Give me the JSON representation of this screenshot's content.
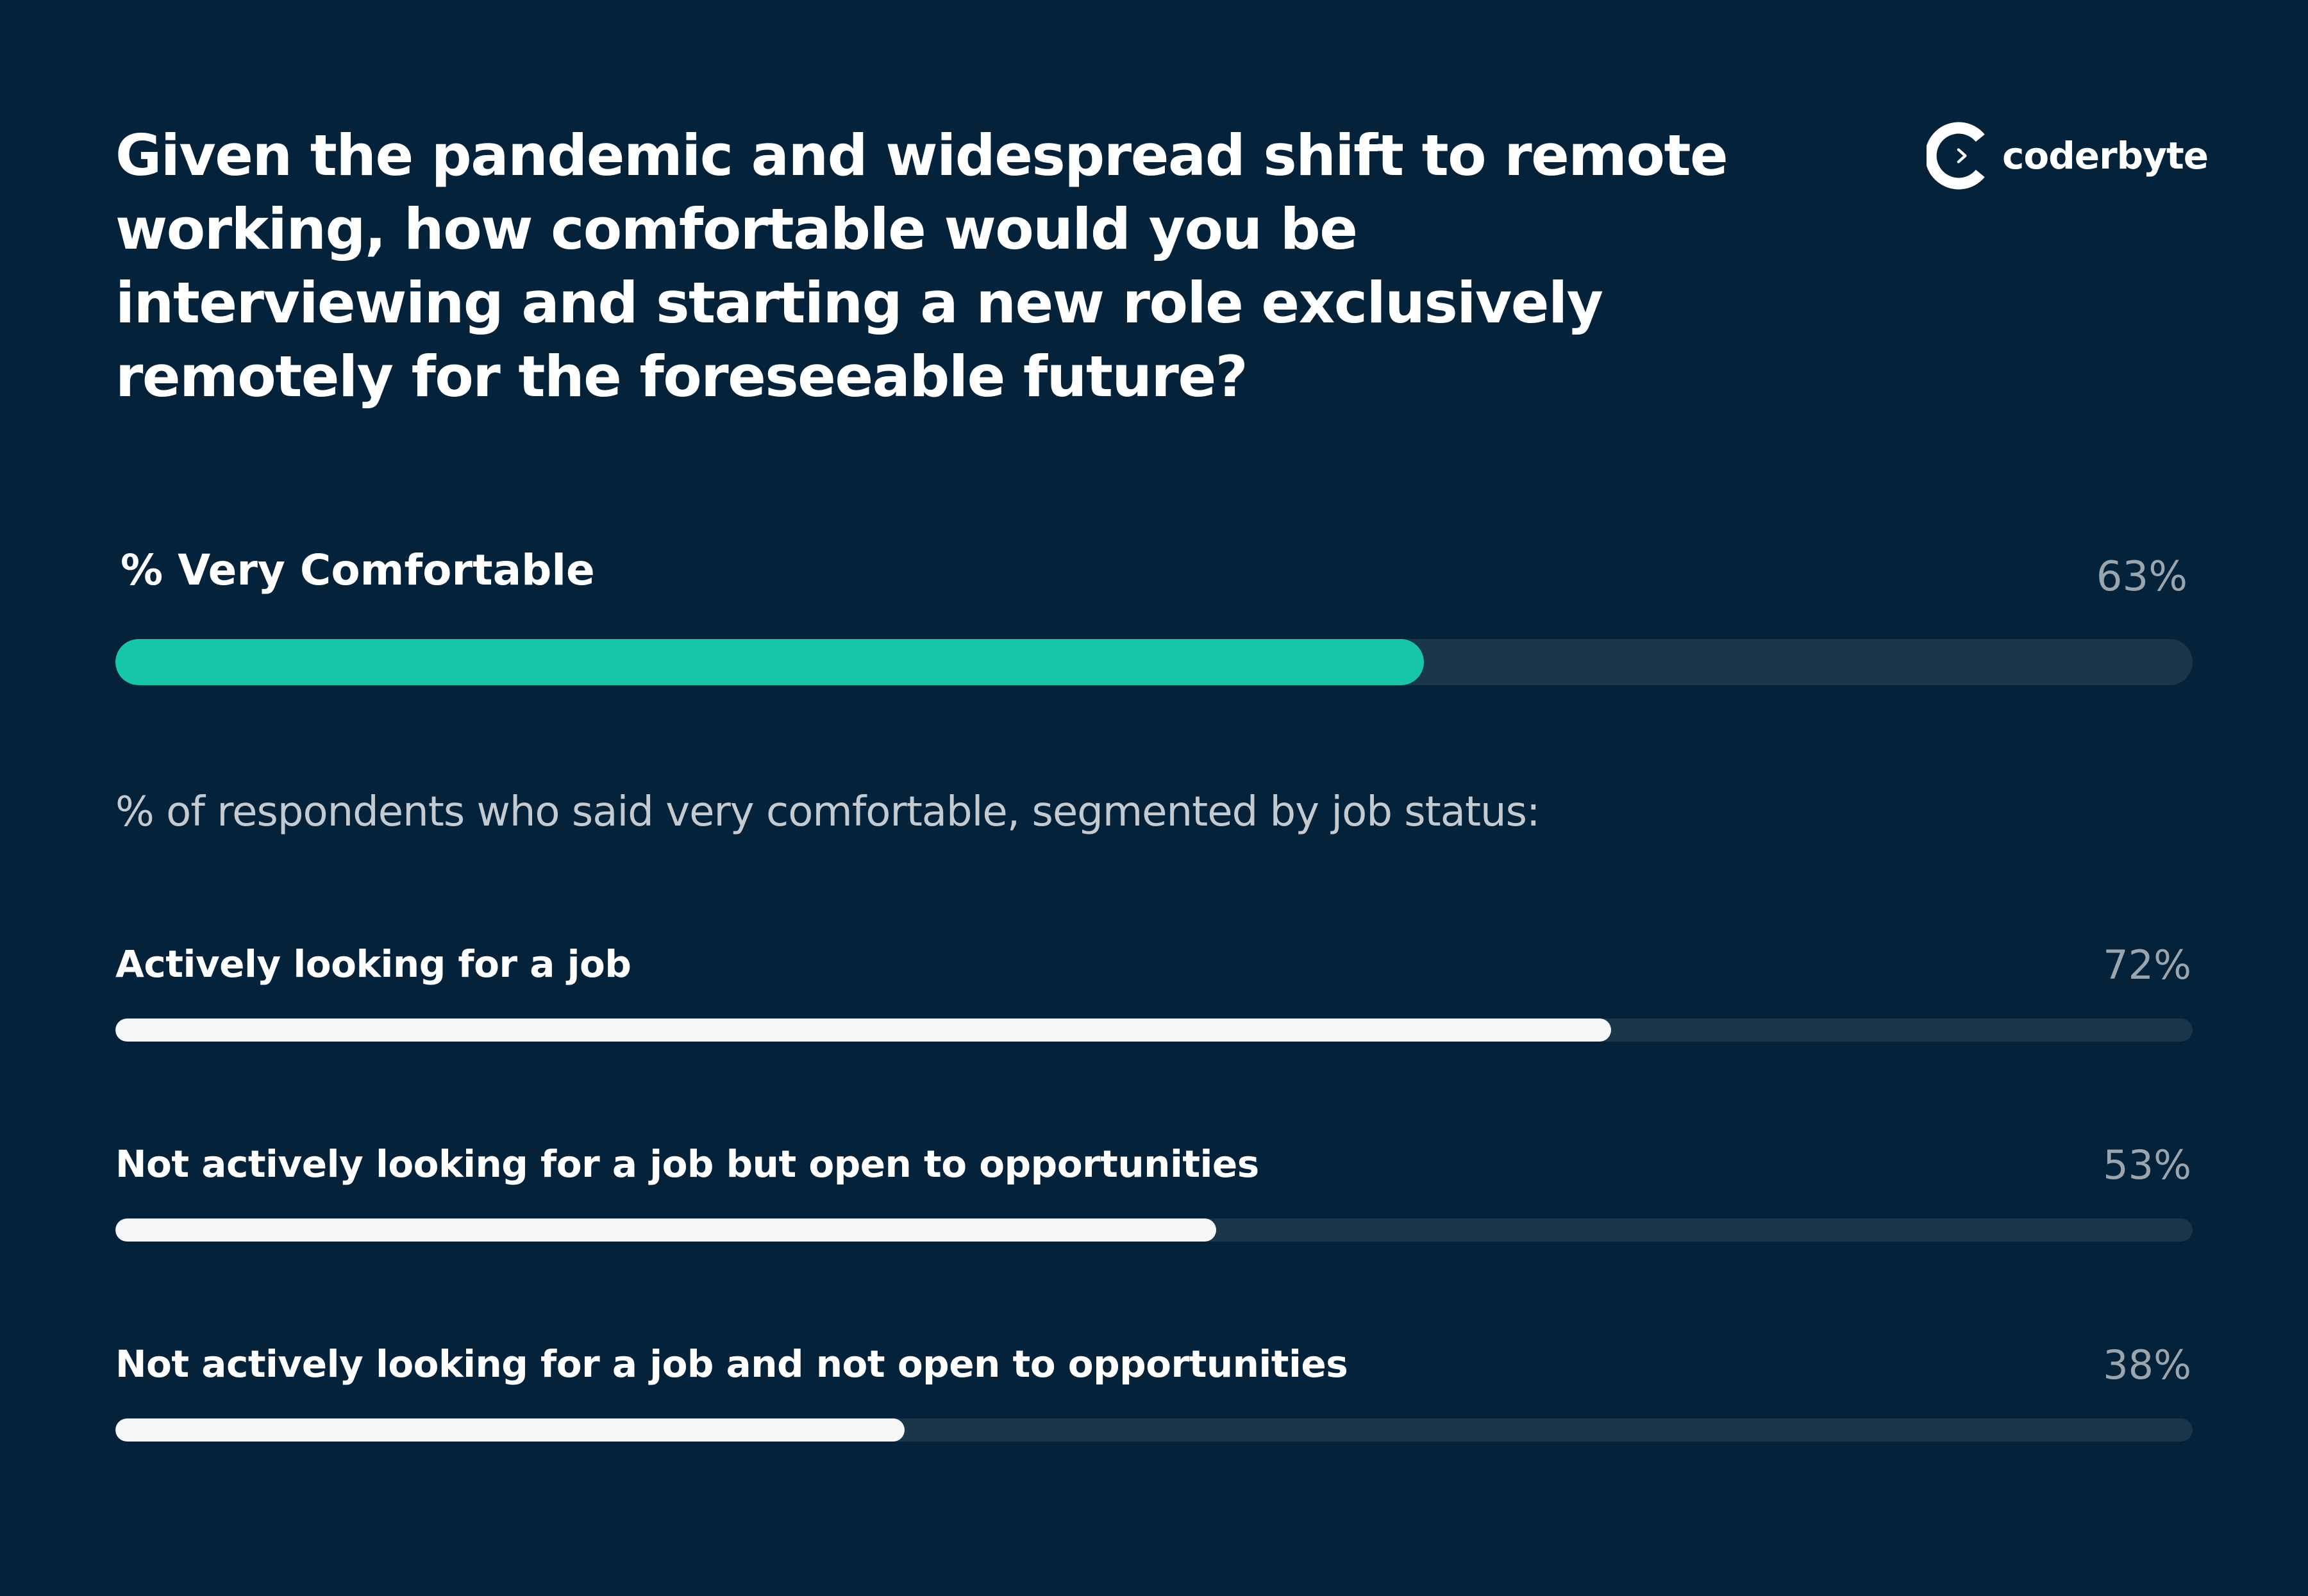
{
  "header": {
    "title": "Given the pandemic and widespread shift to remote working, how comfortable would you be interviewing and starting a new role exclusively remotely for the foreseeable future?",
    "brand": "coderbyte",
    "brand_icon": "coderbyte-logo-icon"
  },
  "colors": {
    "background": "#04223a",
    "track": "#1b3549",
    "accent": "#16c6a7",
    "segment_bar": "#f4f6f8",
    "value_text": "#9aa5ae"
  },
  "subtitle": "% of respondents who said very comfortable, segmented by job status:",
  "chart_data": [
    {
      "type": "bar",
      "orientation": "horizontal",
      "categories": [
        "% Very Comfortable"
      ],
      "values": [
        63
      ],
      "value_labels": [
        "63%"
      ],
      "xlim": [
        0,
        100
      ],
      "unit": "%",
      "grid": false
    },
    {
      "type": "bar",
      "orientation": "horizontal",
      "title": "% of respondents who said very comfortable, segmented by job status:",
      "categories": [
        "Actively looking for a job",
        "Not actively looking for a job but open to opportunities",
        "Not actively looking for a job and not open to opportunities"
      ],
      "values": [
        72,
        53,
        38
      ],
      "value_labels": [
        "72%",
        "53%",
        "38%"
      ],
      "xlim": [
        0,
        100
      ],
      "unit": "%",
      "grid": false
    }
  ]
}
